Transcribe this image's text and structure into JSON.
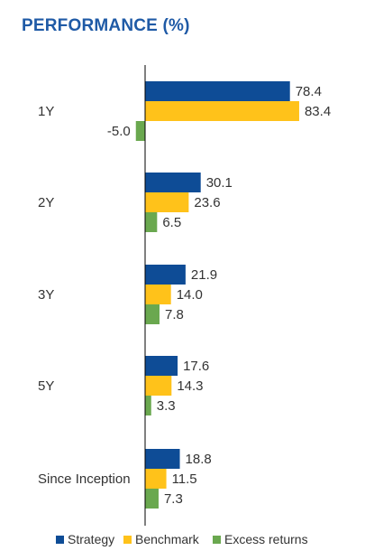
{
  "title": "PERFORMANCE (%)",
  "colors": {
    "title": "#1f5aa6",
    "strategy": "#0e4c96",
    "benchmark": "#ffc21a",
    "excess": "#6aa84f",
    "axis": "#000000"
  },
  "chart_data": {
    "type": "bar",
    "orientation": "horizontal",
    "title": "PERFORMANCE (%)",
    "categories": [
      "1Y",
      "2Y",
      "3Y",
      "5Y",
      "Since Inception"
    ],
    "series": [
      {
        "name": "Strategy",
        "values": [
          78.4,
          30.1,
          21.9,
          17.6,
          18.8
        ]
      },
      {
        "name": "Benchmark",
        "values": [
          83.4,
          23.6,
          14.0,
          14.3,
          11.5
        ]
      },
      {
        "name": "Excess returns",
        "values": [
          -5.0,
          6.5,
          7.8,
          3.3,
          7.3
        ]
      }
    ],
    "value_labels": [
      [
        "78.4",
        "30.1",
        "21.9",
        "17.6",
        "18.8"
      ],
      [
        "83.4",
        "23.6",
        "14.0",
        "14.3",
        "11.5"
      ],
      [
        "-5.0",
        "6.5",
        "7.8",
        "3.3",
        "7.3"
      ]
    ],
    "xlim": [
      -5,
      85
    ],
    "grid": false,
    "legend_position": "bottom"
  }
}
